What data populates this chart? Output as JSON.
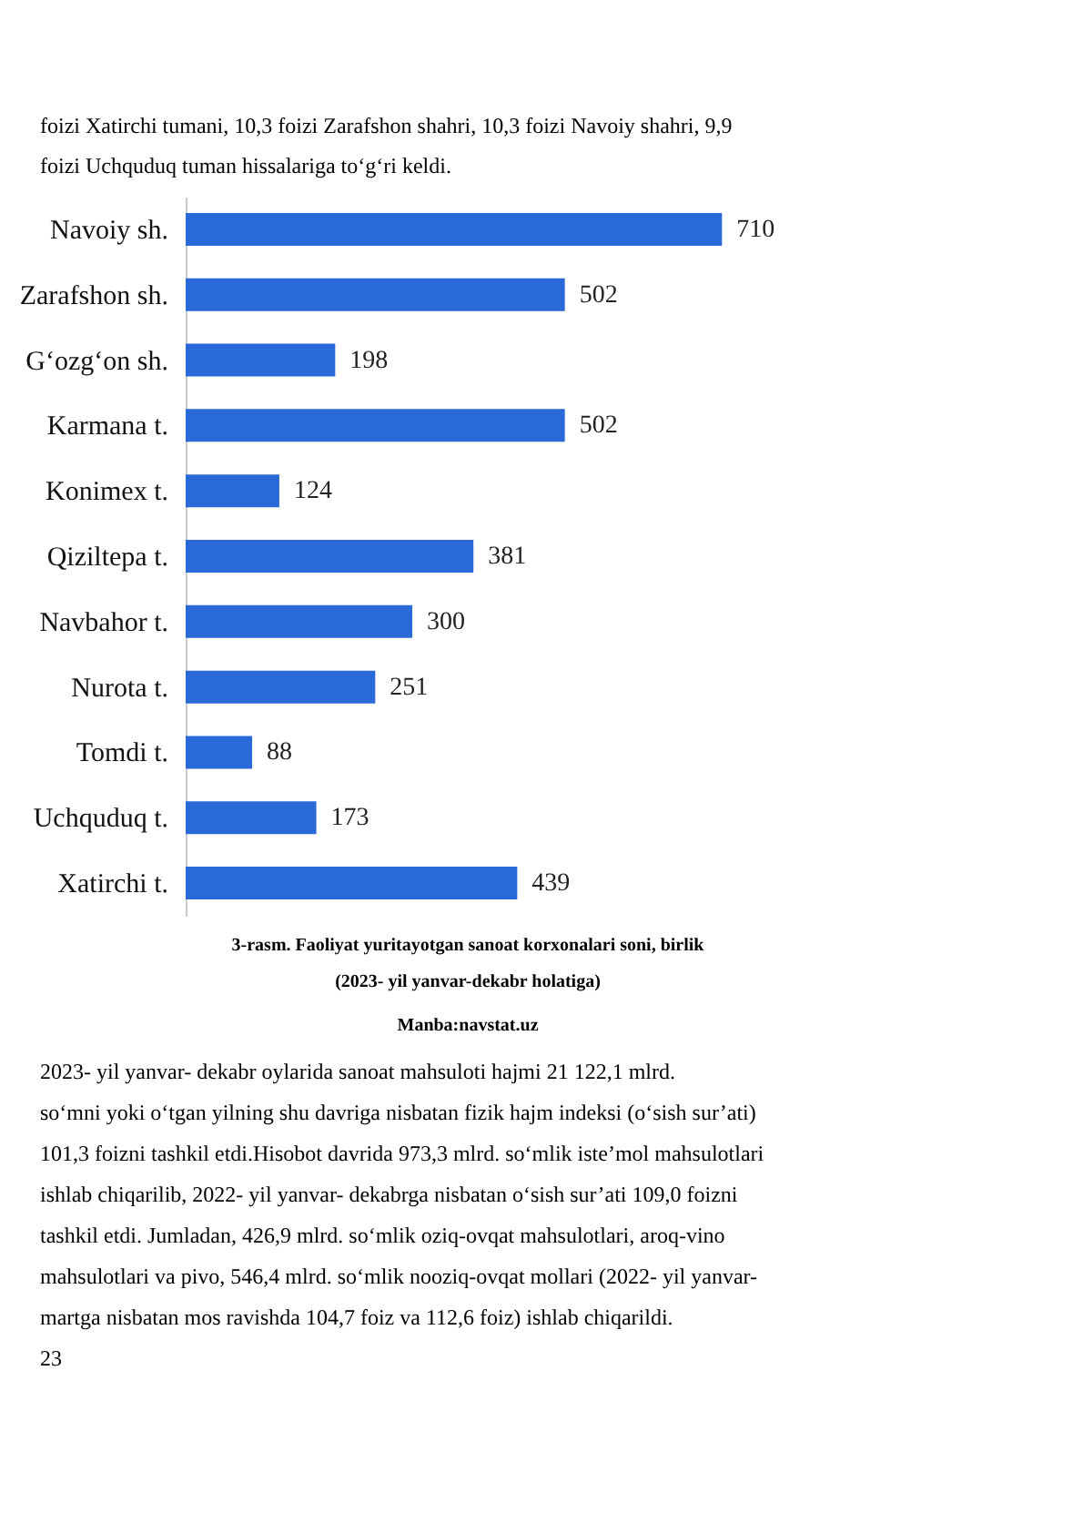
{
  "chart_data": {
    "type": "bar",
    "orientation": "horizontal",
    "title": "3-rasm. Faoliyat yuritayotgan sanoat korxonalari soni, birlik",
    "subtitle": "(2023- yil yanvar-dekabr holatiga)",
    "categories": [
      "Navoiy sh.",
      "Zarafshon sh.",
      "G‘ozg‘on sh.",
      "Karmana t.",
      "Konimex t.",
      "Qiziltepa t.",
      "Navbahor t.",
      "Nurota t.",
      "Tomdi t.",
      "Uchquduq t.",
      "Xatirchi t."
    ],
    "values": [
      710,
      502,
      198,
      502,
      124,
      381,
      300,
      251,
      88,
      173,
      439
    ],
    "color": "#2a6ad8",
    "data_labels": true,
    "tick_labels": "y",
    "annotations": [
      "foizi Xatirchi tumani, 10,3 foizi Zarafshon  shahri, 10,3 foizi Navoiy shahri, 9,9",
      "foizi Uchquduq tuman hissalariga to‘g‘ri keldi.",
      "Manba:navstat.uz",
      "            2023- yil yanvar- dekabr oylarida sanoat mahsuloti hajmi 21 122,1 mlrd.",
      "so‘mni yoki o‘tgan  yilning shu davriga nisbatan fizik hajm indeksi (o‘sish sur’ati)",
      "101,3 foizni tashkil etdi.Hisobot davrida 973,3 mlrd. so‘mlik iste’mol mahsulotlari",
      "ishlab chiqarilib, 2022- yil yanvar- dekabrga nisbatan o‘sish sur’ati 109,0 foizni",
      "tashkil etdi. Jumladan, 426,9 mlrd. so‘mlik oziq-ovqat mahsulotlari, aroq-vino",
      "mahsulotlari va pivo, 546,4 mlrd. so‘mlik nooziq-ovqat mollari (2022- yil yanvar-",
      "martga nisbatan mos ravishda 104,7 foiz va 112,6 foiz) ishlab chiqarildi.",
      "23"
    ]
  }
}
